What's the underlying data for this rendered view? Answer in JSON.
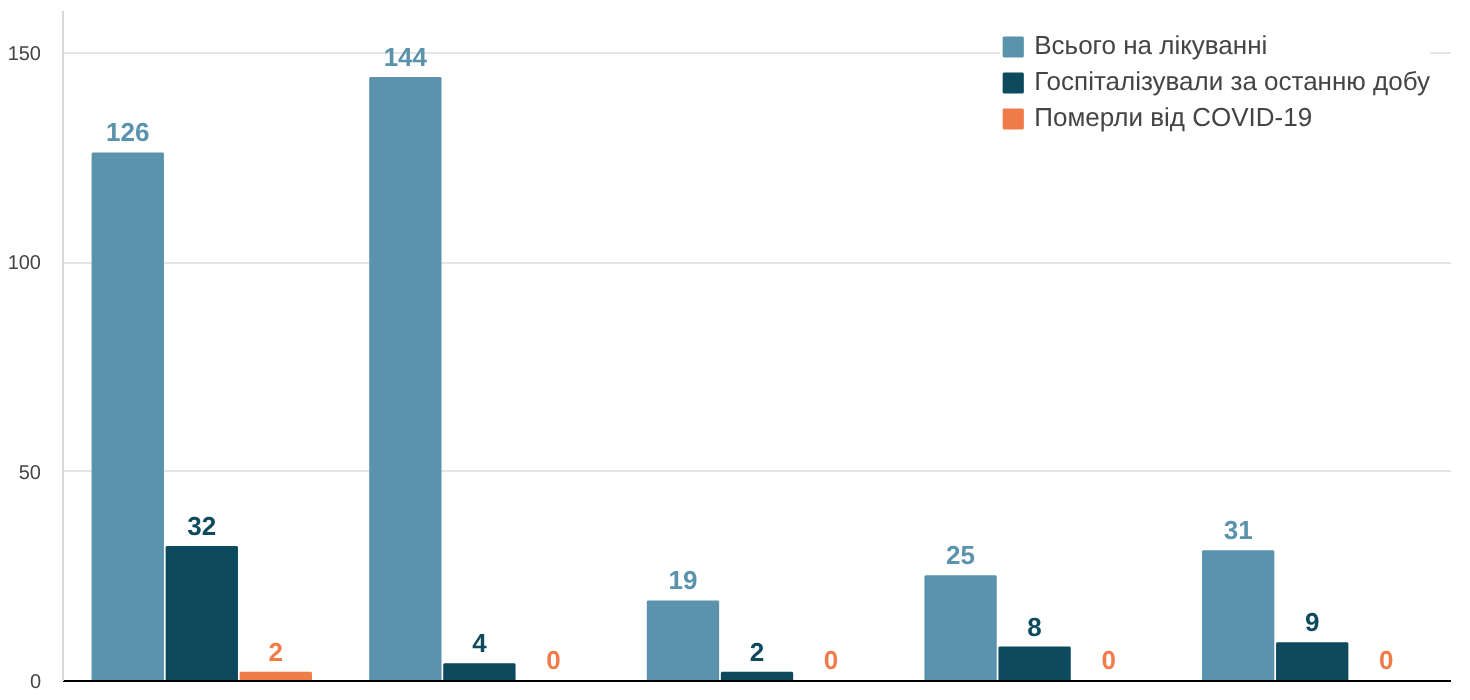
{
  "chart_data": {
    "type": "bar",
    "categories": [
      null,
      null,
      null,
      null,
      null
    ],
    "series": [
      {
        "name": "Всього на лікуванні",
        "color": "#5b93ad",
        "values": [
          126,
          144,
          19,
          25,
          31
        ]
      },
      {
        "name": "Госпіталізували за останню добу",
        "color": "#0d4a5e",
        "values": [
          32,
          4,
          2,
          8,
          9
        ]
      },
      {
        "name": "Померли від COVID-19",
        "color": "#f07c4a",
        "values": [
          2,
          0,
          0,
          0,
          0
        ]
      }
    ],
    "ylim": [
      0,
      160
    ],
    "yticks": [
      0,
      50,
      100,
      150
    ],
    "grid": "y",
    "legend": "top right",
    "data_labels": true
  }
}
